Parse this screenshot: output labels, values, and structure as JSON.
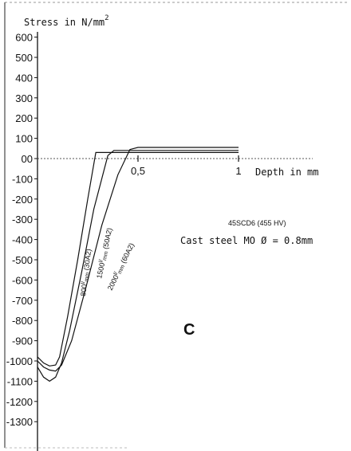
{
  "chart_data": {
    "type": "line",
    "ylabel": "Stress in N/mm",
    "ylabel_sup": "2",
    "xlabel": "Depth in mm",
    "xticks": [
      {
        "value": 0.5,
        "label": "0,5"
      },
      {
        "value": 1,
        "label": "1"
      }
    ],
    "yticks": [
      600,
      500,
      400,
      300,
      200,
      100,
      0,
      -100,
      -200,
      -300,
      -400,
      -500,
      -600,
      -700,
      -800,
      -900,
      -1000,
      -1100,
      -1200,
      -1300
    ],
    "ytick_labels": [
      "600",
      "500",
      "400",
      "300",
      "200",
      "100",
      "00",
      "-100",
      "-200",
      "-300",
      "-400",
      "-500",
      "-600",
      "-700",
      "-800",
      "-900",
      "-1000",
      "-1100",
      "-1200",
      "-1300"
    ],
    "xlim": [
      0,
      1.15
    ],
    "ylim": [
      -1350,
      650
    ],
    "material_line1": "45SCD6 (455 HV)",
    "material_line2": "Cast steel MO Ø = 0.8mm",
    "panel_letter": "C",
    "series": [
      {
        "name": "800 l/mm (30A2)",
        "points": [
          [
            0,
            -980
          ],
          [
            0.03,
            -1010
          ],
          [
            0.06,
            -1025
          ],
          [
            0.09,
            -1020
          ],
          [
            0.11,
            -980
          ],
          [
            0.15,
            -780
          ],
          [
            0.2,
            -500
          ],
          [
            0.25,
            -200
          ],
          [
            0.29,
            30
          ],
          [
            0.5,
            30
          ],
          [
            1,
            30
          ]
        ]
      },
      {
        "name": "1500 l/mm (50A2)",
        "points": [
          [
            0,
            -1030
          ],
          [
            0.03,
            -1080
          ],
          [
            0.06,
            -1100
          ],
          [
            0.09,
            -1080
          ],
          [
            0.12,
            -1010
          ],
          [
            0.16,
            -850
          ],
          [
            0.22,
            -560
          ],
          [
            0.28,
            -250
          ],
          [
            0.35,
            15
          ],
          [
            0.38,
            40
          ],
          [
            0.5,
            40
          ],
          [
            1,
            40
          ]
        ]
      },
      {
        "name": "2000 l/mm (60A2)",
        "points": [
          [
            0,
            -1000
          ],
          [
            0.03,
            -1030
          ],
          [
            0.06,
            -1045
          ],
          [
            0.09,
            -1050
          ],
          [
            0.12,
            -1020
          ],
          [
            0.17,
            -900
          ],
          [
            0.24,
            -640
          ],
          [
            0.32,
            -330
          ],
          [
            0.4,
            -80
          ],
          [
            0.46,
            45
          ],
          [
            0.5,
            55
          ],
          [
            1,
            55
          ]
        ]
      }
    ],
    "series_labels": [
      {
        "main": "800",
        "sup": "l/",
        "sub": "mm",
        "tail": " (30A2)"
      },
      {
        "main": "1500",
        "sup": "l/",
        "sub": "mm",
        "tail": " (50A2)"
      },
      {
        "main": "2000",
        "sup": "l/",
        "sub": "mm",
        "tail": " (60A2)"
      }
    ]
  }
}
